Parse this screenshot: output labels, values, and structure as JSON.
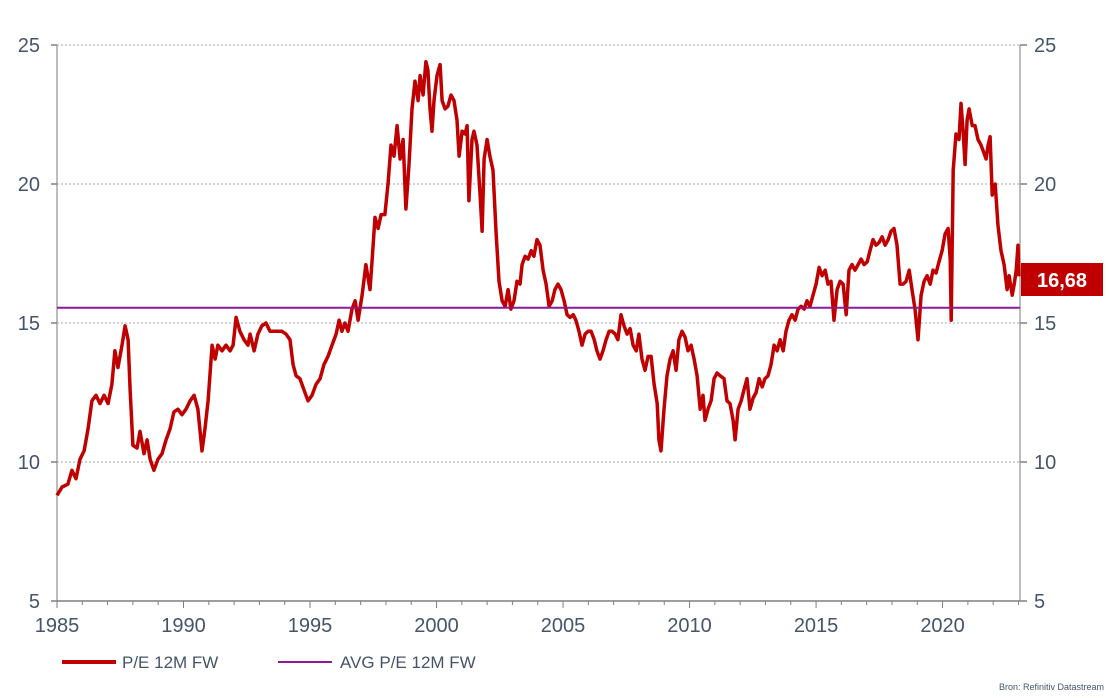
{
  "chart_data": {
    "type": "line",
    "title": "",
    "xlabel": "",
    "ylabel": "",
    "xlim": [
      1985,
      2023.06
    ],
    "ylim": [
      5,
      25
    ],
    "x_ticks": [
      "1985",
      "1990",
      "1995",
      "2000",
      "2005",
      "2010",
      "2015",
      "2020"
    ],
    "x_tick_values": [
      1985,
      1990,
      1995,
      2000,
      2005,
      2010,
      2015,
      2020
    ],
    "y_ticks_left": [
      "5",
      "10",
      "15",
      "20",
      "25"
    ],
    "y_ticks_right": [
      "5",
      "10",
      "15",
      "20",
      "25"
    ],
    "y_tick_values": [
      5,
      10,
      15,
      20,
      25
    ],
    "grid": true,
    "legend_position": "bottom-left",
    "series": [
      {
        "name": "P/E 12M FW",
        "color": "#c00000",
        "x": [
          1985.0,
          1985.2,
          1985.43,
          1985.59,
          1985.75,
          1985.91,
          1986.07,
          1986.23,
          1986.38,
          1986.54,
          1986.7,
          1986.86,
          1987.02,
          1987.17,
          1987.29,
          1987.41,
          1987.57,
          1987.69,
          1987.81,
          1987.89,
          1988.0,
          1988.16,
          1988.28,
          1988.44,
          1988.56,
          1988.68,
          1988.83,
          1988.99,
          1989.15,
          1989.31,
          1989.47,
          1989.62,
          1989.78,
          1989.94,
          1990.1,
          1990.26,
          1990.42,
          1990.57,
          1990.73,
          1990.85,
          1990.97,
          1991.13,
          1991.25,
          1991.36,
          1991.52,
          1991.68,
          1991.84,
          1991.96,
          1992.08,
          1992.23,
          1992.39,
          1992.55,
          1992.63,
          1992.79,
          1992.94,
          1993.1,
          1993.26,
          1993.42,
          1993.58,
          1993.74,
          1993.89,
          1994.05,
          1994.21,
          1994.33,
          1994.45,
          1994.6,
          1994.76,
          1994.92,
          1995.08,
          1995.24,
          1995.4,
          1995.55,
          1995.71,
          1995.87,
          1996.03,
          1996.15,
          1996.26,
          1996.38,
          1996.5,
          1996.66,
          1996.78,
          1996.9,
          1997.06,
          1997.21,
          1997.37,
          1997.45,
          1997.57,
          1997.69,
          1997.81,
          1997.96,
          1998.08,
          1998.2,
          1998.32,
          1998.44,
          1998.56,
          1998.68,
          1998.79,
          1998.91,
          1999.03,
          1999.15,
          1999.27,
          1999.35,
          1999.47,
          1999.58,
          1999.66,
          1999.74,
          1999.82,
          1999.9,
          2000.02,
          2000.14,
          2000.22,
          2000.34,
          2000.45,
          2000.57,
          2000.69,
          2000.81,
          2000.89,
          2001.01,
          2001.13,
          2001.21,
          2001.28,
          2001.4,
          2001.48,
          2001.6,
          2001.72,
          2001.8,
          2001.88,
          2002.0,
          2002.11,
          2002.23,
          2002.35,
          2002.47,
          2002.59,
          2002.71,
          2002.83,
          2002.94,
          2003.06,
          2003.18,
          2003.3,
          2003.38,
          2003.5,
          2003.62,
          2003.74,
          2003.85,
          2003.97,
          2004.09,
          2004.21,
          2004.33,
          2004.45,
          2004.57,
          2004.68,
          2004.8,
          2004.92,
          2005.04,
          2005.16,
          2005.28,
          2005.4,
          2005.51,
          2005.63,
          2005.75,
          2005.87,
          2005.99,
          2006.11,
          2006.23,
          2006.34,
          2006.46,
          2006.58,
          2006.7,
          2006.82,
          2006.94,
          2007.06,
          2007.17,
          2007.29,
          2007.41,
          2007.53,
          2007.65,
          2007.77,
          2007.89,
          2008.0,
          2008.12,
          2008.24,
          2008.36,
          2008.48,
          2008.6,
          2008.72,
          2008.79,
          2008.87,
          2008.99,
          2009.11,
          2009.23,
          2009.35,
          2009.47,
          2009.58,
          2009.7,
          2009.82,
          2009.94,
          2010.06,
          2010.18,
          2010.3,
          2010.42,
          2010.53,
          2010.61,
          2010.73,
          2010.85,
          2010.97,
          2011.09,
          2011.21,
          2011.36,
          2011.48,
          2011.6,
          2011.72,
          2011.8,
          2011.92,
          2012.04,
          2012.15,
          2012.27,
          2012.39,
          2012.51,
          2012.63,
          2012.75,
          2012.87,
          2012.98,
          2013.1,
          2013.22,
          2013.34,
          2013.46,
          2013.58,
          2013.7,
          2013.81,
          2013.93,
          2014.05,
          2014.17,
          2014.29,
          2014.41,
          2014.53,
          2014.64,
          2014.76,
          2014.88,
          2015.0,
          2015.12,
          2015.24,
          2015.36,
          2015.47,
          2015.59,
          2015.71,
          2015.83,
          2015.95,
          2016.07,
          2016.19,
          2016.3,
          2016.42,
          2016.54,
          2016.66,
          2016.78,
          2016.9,
          2017.02,
          2017.13,
          2017.25,
          2017.37,
          2017.49,
          2017.61,
          2017.73,
          2017.85,
          2017.96,
          2018.08,
          2018.2,
          2018.32,
          2018.44,
          2018.56,
          2018.68,
          2018.79,
          2018.91,
          2019.03,
          2019.15,
          2019.27,
          2019.39,
          2019.51,
          2019.62,
          2019.74,
          2019.86,
          2019.98,
          2020.1,
          2020.22,
          2020.3,
          2020.34,
          2020.42,
          2020.53,
          2020.65,
          2020.73,
          2020.81,
          2020.89,
          2020.97,
          2021.05,
          2021.17,
          2021.28,
          2021.4,
          2021.52,
          2021.6,
          2021.72,
          2021.8,
          2021.88,
          2021.96,
          2022.08,
          2022.19,
          2022.31,
          2022.43,
          2022.55,
          2022.63,
          2022.75,
          2022.83,
          2022.91,
          2022.98,
          2023.02
        ],
        "y": [
          8.8,
          9.1,
          9.2,
          9.7,
          9.4,
          10.1,
          10.4,
          11.2,
          12.2,
          12.4,
          12.1,
          12.4,
          12.1,
          12.8,
          14.0,
          13.4,
          14.2,
          14.9,
          14.4,
          12.6,
          10.6,
          10.5,
          11.1,
          10.3,
          10.8,
          10.1,
          9.7,
          10.1,
          10.3,
          10.8,
          11.2,
          11.8,
          11.9,
          11.7,
          11.9,
          12.2,
          12.4,
          11.9,
          10.4,
          11.2,
          12.2,
          14.2,
          13.7,
          14.2,
          14.0,
          14.2,
          14.0,
          14.2,
          15.2,
          14.7,
          14.4,
          14.2,
          14.6,
          14.0,
          14.6,
          14.9,
          15.0,
          14.7,
          14.7,
          14.7,
          14.7,
          14.6,
          14.4,
          13.5,
          13.1,
          13.0,
          12.6,
          12.2,
          12.4,
          12.8,
          13.0,
          13.5,
          13.8,
          14.2,
          14.6,
          15.1,
          14.7,
          15.0,
          14.7,
          15.5,
          15.8,
          15.1,
          16.0,
          17.1,
          16.2,
          17.2,
          18.8,
          18.4,
          18.9,
          18.9,
          20.0,
          21.4,
          21.0,
          22.1,
          20.9,
          21.6,
          19.1,
          20.7,
          22.7,
          23.7,
          23.0,
          23.9,
          23.2,
          24.4,
          24.1,
          22.7,
          21.9,
          23.0,
          23.9,
          24.3,
          23.0,
          22.7,
          22.8,
          23.2,
          23.0,
          22.3,
          21.0,
          21.9,
          21.8,
          22.1,
          19.4,
          21.6,
          21.9,
          21.4,
          19.6,
          18.3,
          20.9,
          21.6,
          21.0,
          20.5,
          18.3,
          16.5,
          15.8,
          15.6,
          16.2,
          15.5,
          15.8,
          16.5,
          16.4,
          17.1,
          17.4,
          17.3,
          17.6,
          17.4,
          18.0,
          17.8,
          16.9,
          16.4,
          15.6,
          15.8,
          16.2,
          16.4,
          16.2,
          15.8,
          15.3,
          15.2,
          15.3,
          15.1,
          14.7,
          14.2,
          14.6,
          14.7,
          14.7,
          14.4,
          14.0,
          13.7,
          14.0,
          14.4,
          14.7,
          14.7,
          14.6,
          14.4,
          15.3,
          14.9,
          14.6,
          14.8,
          14.2,
          14.0,
          14.6,
          13.7,
          13.3,
          13.8,
          13.8,
          12.8,
          12.1,
          10.8,
          10.4,
          11.9,
          13.1,
          13.7,
          14.0,
          13.3,
          14.4,
          14.7,
          14.5,
          14.0,
          14.2,
          13.7,
          13.1,
          11.9,
          12.4,
          11.5,
          11.9,
          12.2,
          13.0,
          13.2,
          13.1,
          13.0,
          12.2,
          12.1,
          11.5,
          10.8,
          11.9,
          12.2,
          12.6,
          13.0,
          11.9,
          12.3,
          12.5,
          13.0,
          12.7,
          13.0,
          13.1,
          13.5,
          14.2,
          14.0,
          14.4,
          14.0,
          14.7,
          15.1,
          15.3,
          15.1,
          15.5,
          15.6,
          15.5,
          15.8,
          15.6,
          16.0,
          16.4,
          17.0,
          16.7,
          16.9,
          16.4,
          16.5,
          15.1,
          16.2,
          16.5,
          16.4,
          15.3,
          16.9,
          17.1,
          16.9,
          17.1,
          17.3,
          17.1,
          17.2,
          17.6,
          18.0,
          17.8,
          17.9,
          18.1,
          17.8,
          18.0,
          18.3,
          18.4,
          17.8,
          16.4,
          16.4,
          16.5,
          16.9,
          16.2,
          15.5,
          14.4,
          16.0,
          16.5,
          16.7,
          16.4,
          16.9,
          16.8,
          17.2,
          17.6,
          18.2,
          18.4,
          17.3,
          15.1,
          20.5,
          21.8,
          21.6,
          22.9,
          21.9,
          20.7,
          22.3,
          22.7,
          22.1,
          22.1,
          21.6,
          21.4,
          21.2,
          20.9,
          21.4,
          21.7,
          19.6,
          20.0,
          18.5,
          17.6,
          17.1,
          16.2,
          16.7,
          16.0,
          16.4,
          16.9,
          17.8,
          16.68
        ]
      },
      {
        "name": "AVG P/E 12M FW",
        "color": "#8b1a9b",
        "x": [
          1985,
          2023.06
        ],
        "y": [
          15.55,
          15.55
        ]
      }
    ],
    "last_value_label": "16,68",
    "last_value_color": "#c00000",
    "source": "Bron: Refinitiv Datastream"
  }
}
